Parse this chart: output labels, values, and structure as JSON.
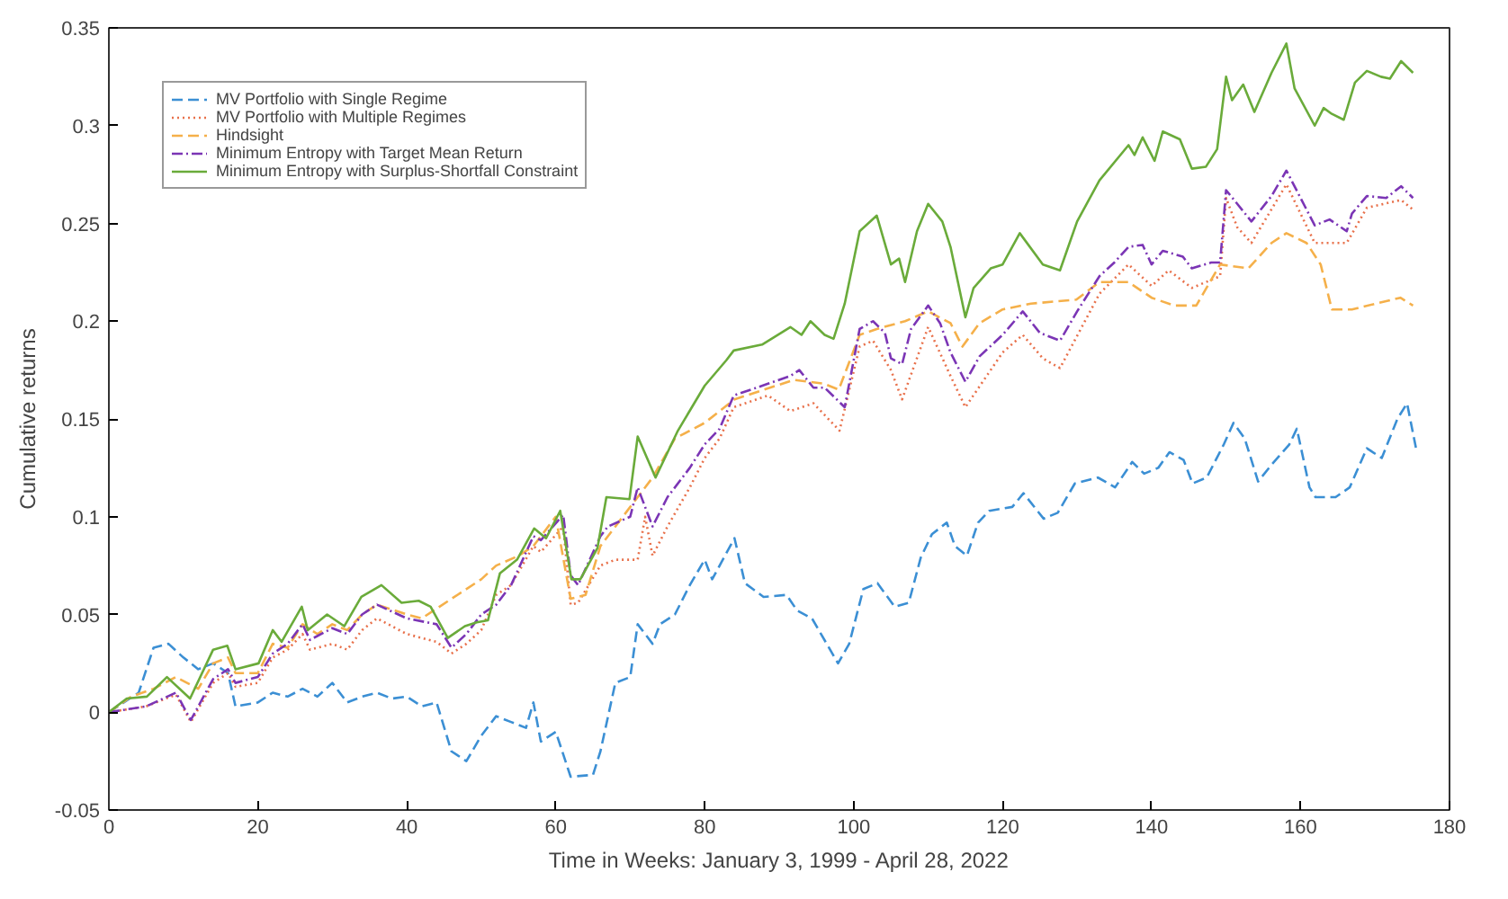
{
  "chart_data": {
    "type": "line",
    "xlabel": "Time in Weeks: January 3, 1999 - April 28, 2022",
    "ylabel": "Cumulative returns",
    "xlim": [
      0,
      180
    ],
    "xticks": [
      0,
      20,
      40,
      60,
      80,
      100,
      120,
      140,
      160,
      180
    ],
    "ylim": [
      -0.05,
      0.35
    ],
    "yticks": [
      -0.05,
      0,
      0.05,
      0.1,
      0.15,
      0.2,
      0.25,
      0.3,
      0.35
    ],
    "grid": false,
    "legend": "top left",
    "marker": "none",
    "series": [
      {
        "name": "MV Portfolio with Single Regime",
        "color": "#3b8fd4",
        "line_style": "dashed",
        "x": [
          0,
          2,
          4,
          6,
          8,
          10,
          12,
          14,
          16,
          17,
          20,
          22,
          24,
          26,
          28,
          30,
          32,
          34,
          36,
          38,
          40,
          42,
          44,
          46,
          48,
          50,
          52,
          54,
          56,
          57,
          58,
          60,
          62,
          65,
          66,
          68,
          70,
          71,
          73,
          74,
          76,
          78,
          80,
          81,
          84,
          85.4,
          87.9,
          91,
          92.4,
          94.4,
          97.9,
          99.4,
          101.3,
          103.2,
          105.5,
          107.4,
          109,
          110.5,
          112.5,
          113.6,
          115.2,
          116.7,
          118.2,
          121.3,
          122.8,
          125.5,
          127.4,
          129.7,
          132.8,
          135.1,
          137.4,
          139,
          140.9,
          142.4,
          144.3,
          145.5,
          147.4,
          149.7,
          151,
          152.5,
          154.3,
          156.2,
          158.5,
          159.5,
          161.2,
          162,
          164.7,
          166.6,
          168.9,
          170.9,
          173,
          174.3,
          175.5
        ],
        "values": [
          0,
          0.005,
          0.01,
          0.033,
          0.035,
          0.028,
          0.022,
          0.025,
          0.02,
          0.003,
          0.005,
          0.01,
          0.008,
          0.012,
          0.008,
          0.015,
          0.005,
          0.008,
          0.01,
          0.007,
          0.008,
          0.003,
          0.005,
          -0.02,
          -0.025,
          -0.012,
          -0.002,
          -0.005,
          -0.008,
          0.005,
          -0.015,
          -0.01,
          -0.033,
          -0.032,
          -0.02,
          0.015,
          0.018,
          0.045,
          0.035,
          0.045,
          0.05,
          0.065,
          0.078,
          0.068,
          0.089,
          0.066,
          0.059,
          0.06,
          0.052,
          0.048,
          0.025,
          0.035,
          0.063,
          0.066,
          0.054,
          0.056,
          0.079,
          0.091,
          0.097,
          0.085,
          0.08,
          0.097,
          0.103,
          0.105,
          0.112,
          0.099,
          0.102,
          0.117,
          0.12,
          0.115,
          0.128,
          0.122,
          0.125,
          0.133,
          0.129,
          0.117,
          0.12,
          0.137,
          0.148,
          0.14,
          0.118,
          0.127,
          0.137,
          0.145,
          0.115,
          0.11,
          0.11,
          0.115,
          0.135,
          0.13,
          0.15,
          0.158,
          0.135
        ]
      },
      {
        "name": "MV Portfolio with Multiple Regimes",
        "color": "#e8704a",
        "line_style": "dotted",
        "x": [
          0,
          5,
          9,
          11,
          14,
          16,
          17,
          20,
          22,
          24,
          26,
          27,
          30,
          32,
          34,
          36,
          40,
          44,
          46,
          48,
          50,
          52,
          54,
          57,
          58,
          61,
          62,
          63,
          66,
          68,
          71,
          72,
          73,
          75,
          78,
          80,
          82,
          83.9,
          88.5,
          91.5,
          94.6,
          96.1,
          98.1,
          100.8,
          102.6,
          105,
          106.5,
          110,
          113,
          115,
          120,
          122.7,
          125.4,
          127.7,
          133,
          136.9,
          140,
          142.3,
          145.4,
          149.2,
          150,
          151.5,
          153.4,
          158.1,
          161.9,
          166.2,
          168.9,
          173.5,
          175.1
        ],
        "values": [
          0,
          0.003,
          0.009,
          -0.005,
          0.015,
          0.02,
          0.013,
          0.015,
          0.028,
          0.032,
          0.04,
          0.032,
          0.035,
          0.032,
          0.042,
          0.048,
          0.04,
          0.036,
          0.03,
          0.035,
          0.042,
          0.06,
          0.065,
          0.085,
          0.082,
          0.095,
          0.055,
          0.056,
          0.075,
          0.078,
          0.078,
          0.1,
          0.08,
          0.095,
          0.115,
          0.13,
          0.14,
          0.156,
          0.162,
          0.154,
          0.158,
          0.152,
          0.144,
          0.187,
          0.19,
          0.175,
          0.16,
          0.197,
          0.172,
          0.156,
          0.184,
          0.193,
          0.181,
          0.176,
          0.214,
          0.229,
          0.218,
          0.226,
          0.217,
          0.223,
          0.263,
          0.248,
          0.24,
          0.27,
          0.24,
          0.24,
          0.258,
          0.262,
          0.257
        ]
      },
      {
        "name": "Hindsight",
        "color": "#f5b04a",
        "line_style": "dashed",
        "x": [
          0,
          3,
          6,
          9,
          12,
          14,
          16,
          17,
          20,
          22,
          24,
          26,
          28,
          30,
          32,
          34,
          36,
          40,
          42,
          46,
          50,
          52,
          55,
          57,
          60,
          62,
          64,
          66,
          70,
          73,
          76,
          80,
          84,
          88,
          92,
          96,
          98,
          100.8,
          103.1,
          106.9,
          110,
          113,
          114.6,
          116.9,
          120,
          123.8,
          129.9,
          133,
          136.9,
          140,
          143,
          146,
          149.2,
          153,
          156.1,
          158.1,
          160.8,
          162.7,
          164.2,
          166.9,
          173.4,
          175.1
        ],
        "values": [
          0,
          0.008,
          0.012,
          0.018,
          0.012,
          0.025,
          0.028,
          0.02,
          0.02,
          0.035,
          0.033,
          0.045,
          0.04,
          0.045,
          0.042,
          0.05,
          0.055,
          0.05,
          0.048,
          0.058,
          0.068,
          0.075,
          0.08,
          0.085,
          0.1,
          0.058,
          0.06,
          0.085,
          0.105,
          0.12,
          0.14,
          0.148,
          0.16,
          0.165,
          0.17,
          0.168,
          0.165,
          0.193,
          0.196,
          0.2,
          0.205,
          0.199,
          0.187,
          0.199,
          0.206,
          0.209,
          0.211,
          0.22,
          0.22,
          0.212,
          0.208,
          0.208,
          0.229,
          0.227,
          0.24,
          0.245,
          0.24,
          0.229,
          0.206,
          0.206,
          0.212,
          0.208
        ]
      },
      {
        "name": "Minimum Entropy with Target Mean Return",
        "color": "#7b35b5",
        "line_style": "dashdot",
        "x": [
          0,
          5,
          9,
          11,
          14,
          16,
          17,
          20,
          22,
          24,
          26,
          27,
          30,
          32,
          34,
          36,
          40,
          44,
          46,
          48,
          50,
          52,
          54,
          57,
          58,
          61,
          62,
          63,
          66,
          67,
          70,
          71,
          73,
          75,
          78,
          80,
          82,
          83.9,
          88.5,
          91.5,
          92.7,
          94.6,
          96.1,
          98.8,
          100.8,
          102.6,
          104.2,
          105,
          106.5,
          107.7,
          110,
          111.6,
          113,
          115,
          116.9,
          120,
          122.7,
          125,
          127.7,
          130,
          133,
          135,
          136.9,
          138.8,
          140,
          141.5,
          144.2,
          145.4,
          148,
          149.2,
          150,
          151.5,
          153.4,
          156.1,
          158.1,
          160,
          161.9,
          163.9,
          166.2,
          166.9,
          168.9,
          171.5,
          173.5,
          175.1
        ],
        "values": [
          0,
          0.003,
          0.01,
          -0.004,
          0.017,
          0.022,
          0.015,
          0.018,
          0.03,
          0.035,
          0.045,
          0.037,
          0.043,
          0.04,
          0.05,
          0.055,
          0.048,
          0.045,
          0.033,
          0.04,
          0.05,
          0.055,
          0.065,
          0.09,
          0.088,
          0.101,
          0.07,
          0.065,
          0.09,
          0.095,
          0.1,
          0.115,
          0.095,
          0.11,
          0.125,
          0.137,
          0.145,
          0.162,
          0.168,
          0.172,
          0.175,
          0.166,
          0.166,
          0.156,
          0.196,
          0.2,
          0.194,
          0.181,
          0.178,
          0.196,
          0.208,
          0.199,
          0.184,
          0.169,
          0.182,
          0.193,
          0.205,
          0.194,
          0.19,
          0.205,
          0.223,
          0.23,
          0.238,
          0.239,
          0.229,
          0.236,
          0.233,
          0.227,
          0.23,
          0.23,
          0.267,
          0.26,
          0.251,
          0.264,
          0.277,
          0.263,
          0.249,
          0.252,
          0.246,
          0.255,
          0.264,
          0.263,
          0.269,
          0.263
        ]
      },
      {
        "name": "Minimum Entropy with Surplus-Shortfall Constraint",
        "color": "#6aab3a",
        "line_style": "solid",
        "x": [
          0,
          2.4,
          5.1,
          7.8,
          10.9,
          14,
          15.9,
          17,
          20.1,
          22,
          23.2,
          25.9,
          26.7,
          29.3,
          31.6,
          33.9,
          36.6,
          39.3,
          41.6,
          43.2,
          45.5,
          47.8,
          49.4,
          50.9,
          52.5,
          54.8,
          57.1,
          58.7,
          60.6,
          62.1,
          63.3,
          65.6,
          66.8,
          69.9,
          71,
          73.4,
          76.4,
          80,
          82.9,
          83.9,
          87.7,
          91.5,
          93,
          94.2,
          96.1,
          97.3,
          98.8,
          100.8,
          103.1,
          105,
          106.1,
          106.9,
          108.5,
          110,
          111.9,
          113,
          115,
          116.1,
          118.4,
          120,
          122.3,
          125.4,
          127.7,
          130,
          133,
          136.9,
          137.7,
          138.8,
          140.4,
          141.5,
          143.8,
          145.4,
          147.3,
          148.8,
          150,
          150.8,
          152.3,
          153.8,
          156.1,
          158.1,
          159.2,
          161.9,
          163.1,
          164.2,
          165.8,
          167.3,
          168.9,
          170.8,
          172,
          173.5,
          175.1
        ],
        "values": [
          0,
          0.007,
          0.008,
          0.018,
          0.007,
          0.032,
          0.034,
          0.022,
          0.025,
          0.042,
          0.036,
          0.054,
          0.042,
          0.05,
          0.044,
          0.059,
          0.065,
          0.056,
          0.057,
          0.054,
          0.038,
          0.044,
          0.046,
          0.047,
          0.071,
          0.078,
          0.094,
          0.089,
          0.103,
          0.068,
          0.068,
          0.084,
          0.11,
          0.109,
          0.141,
          0.12,
          0.144,
          0.167,
          0.18,
          0.185,
          0.188,
          0.197,
          0.193,
          0.2,
          0.193,
          0.191,
          0.209,
          0.246,
          0.254,
          0.229,
          0.232,
          0.22,
          0.246,
          0.26,
          0.251,
          0.238,
          0.202,
          0.217,
          0.227,
          0.229,
          0.245,
          0.229,
          0.226,
          0.251,
          0.272,
          0.29,
          0.285,
          0.294,
          0.282,
          0.297,
          0.293,
          0.278,
          0.279,
          0.288,
          0.325,
          0.313,
          0.321,
          0.307,
          0.327,
          0.342,
          0.319,
          0.3,
          0.309,
          0.306,
          0.303,
          0.322,
          0.328,
          0.325,
          0.324,
          0.333,
          0.327
        ]
      }
    ]
  }
}
